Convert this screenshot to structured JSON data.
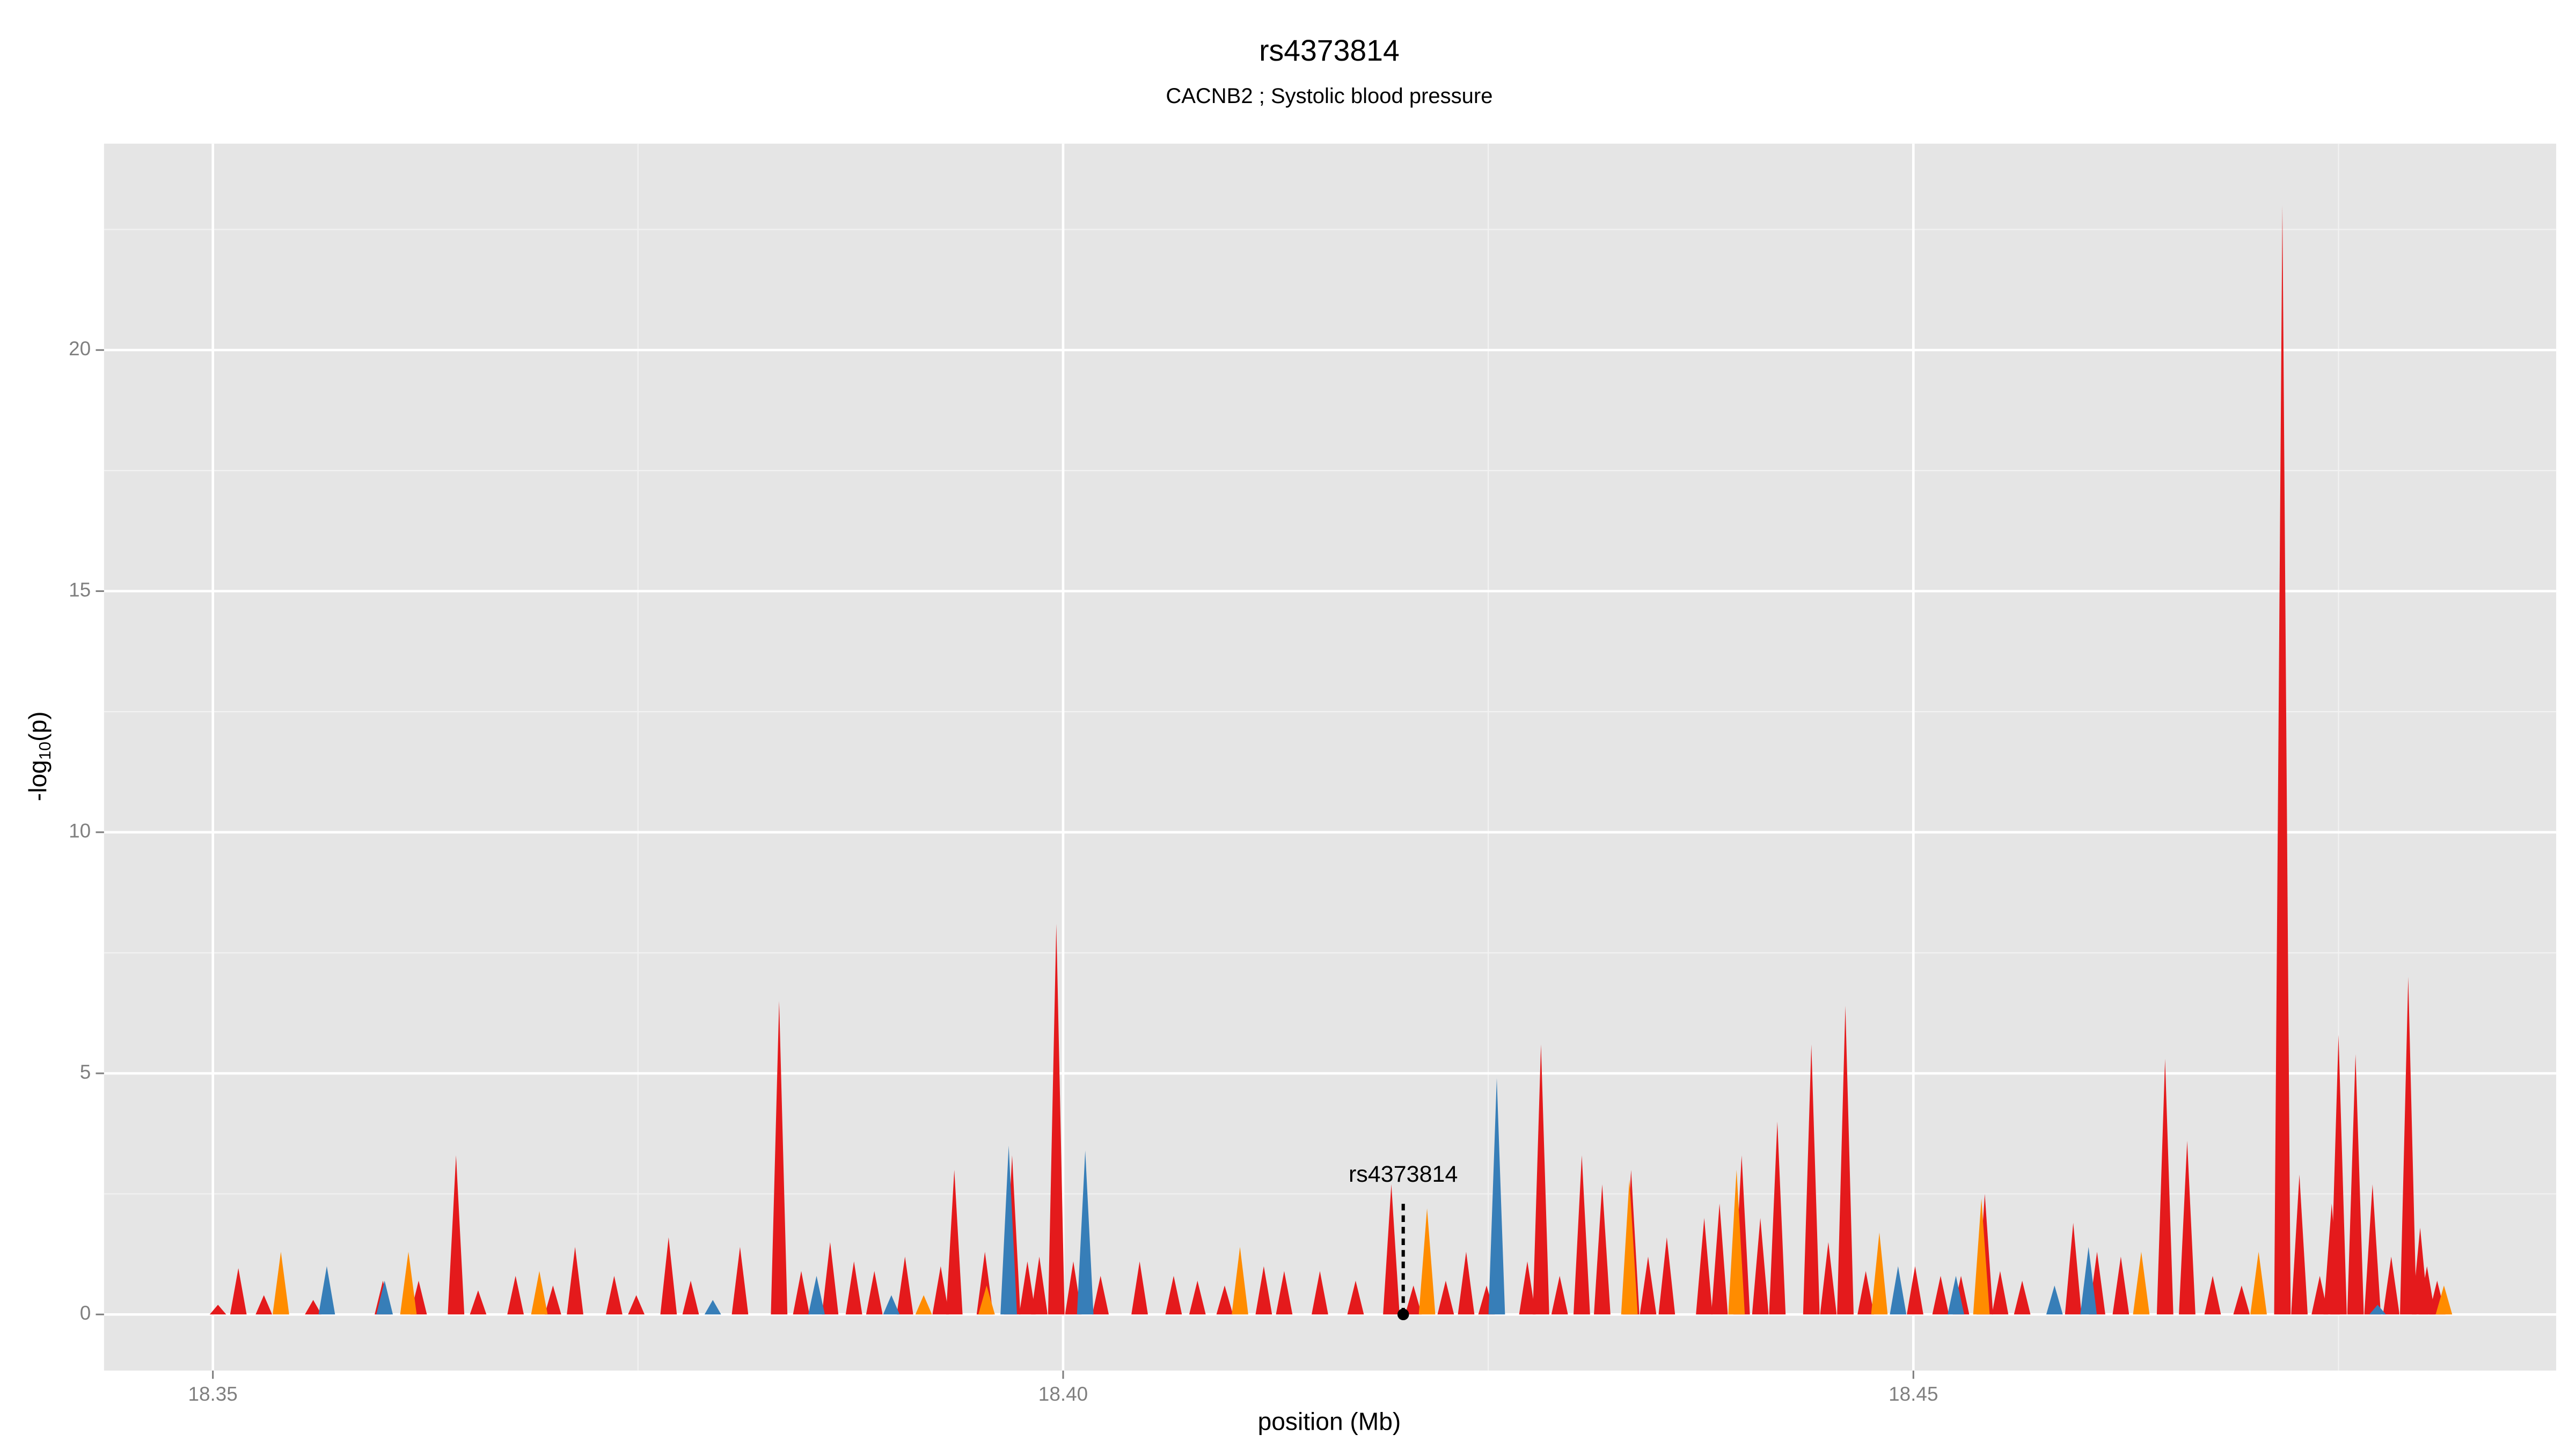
{
  "chart_data": {
    "type": "spike",
    "title": "rs4373814",
    "subtitle": "CACNB2 ; Systolic blood pressure",
    "x_label": "position (Mb)",
    "y_label": {
      "main": "-log",
      "sub": "10",
      "tail": "(p)"
    },
    "xlim": [
      18.3436,
      18.4878
    ],
    "ylim": [
      -1.164,
      24.28
    ],
    "xticks": [
      18.35,
      {
        "value": 18.4,
        "label": "18.40"
      },
      18.45
    ],
    "yticks": [
      0,
      5,
      10,
      15,
      20
    ],
    "minor_xticks": [
      18.375,
      18.425,
      18.475
    ],
    "minor_yticks": [
      2.5,
      7.5,
      12.5,
      17.5,
      22.5
    ],
    "grid": true,
    "series": [
      {
        "color": "#e41a1c",
        "x": [
          18.3503,
          18.3515,
          18.353,
          18.3559,
          18.36,
          18.3621,
          18.3643,
          18.3656,
          18.3678,
          18.37,
          18.3713,
          18.3736,
          18.3749,
          18.3768,
          18.3781,
          18.381,
          18.3833,
          18.3846,
          18.3863,
          18.3877,
          18.3889,
          18.3907,
          18.3928,
          18.3936,
          18.3954,
          18.397,
          18.3979,
          18.3986,
          18.3996,
          18.4006,
          18.4022,
          18.4045,
          18.4065,
          18.4079,
          18.4095,
          18.4118,
          18.413,
          18.4151,
          18.4172,
          18.4193,
          18.4206,
          18.4225,
          18.4237,
          18.4249,
          18.4273,
          18.4281,
          18.4292,
          18.4305,
          18.4317,
          18.4334,
          18.4344,
          18.4355,
          18.4377,
          18.4386,
          18.4399,
          18.441,
          18.442,
          18.444,
          18.445,
          18.446,
          18.4472,
          18.4501,
          18.4516,
          18.4528,
          18.4542,
          18.4551,
          18.4564,
          18.4594,
          18.4608,
          18.4622,
          18.4648,
          18.4661,
          18.4676,
          18.4693,
          18.4717,
          18.4727,
          18.4739,
          18.4746,
          18.475,
          18.476,
          18.477,
          18.4781,
          18.4791,
          18.4798,
          18.4802,
          18.4808
        ],
        "values": [
          0.2,
          0.96,
          0.4,
          0.3,
          0.7,
          0.7,
          3.3,
          0.5,
          0.8,
          0.6,
          1.4,
          0.8,
          0.4,
          1.6,
          0.7,
          1.4,
          6.5,
          0.9,
          1.5,
          1.1,
          0.9,
          1.2,
          1.0,
          3.0,
          1.3,
          3.3,
          1.1,
          1.2,
          8.1,
          1.1,
          0.8,
          1.1,
          0.8,
          0.7,
          0.6,
          1.0,
          0.9,
          0.9,
          0.7,
          2.7,
          0.6,
          0.7,
          1.3,
          0.6,
          1.1,
          5.6,
          0.8,
          3.3,
          2.7,
          3.0,
          1.2,
          1.6,
          2.0,
          2.3,
          3.3,
          2.0,
          4.0,
          5.6,
          1.5,
          6.4,
          0.9,
          1.0,
          0.8,
          0.8,
          2.5,
          0.9,
          0.7,
          1.9,
          1.3,
          1.2,
          5.3,
          3.6,
          0.8,
          0.6,
          23.0,
          2.9,
          0.8,
          2.3,
          5.8,
          5.4,
          2.7,
          1.2,
          7.0,
          1.8,
          1.0,
          0.7
        ]
      },
      {
        "color": "#ff8c00",
        "x": [
          18.354,
          18.3615,
          18.3692,
          18.3918,
          18.3955,
          18.4104,
          18.4214,
          18.4333,
          18.4396,
          18.448,
          18.454,
          18.4634,
          18.4703,
          18.4812
        ],
        "values": [
          1.3,
          1.3,
          0.9,
          0.4,
          0.6,
          1.4,
          2.2,
          2.8,
          3.0,
          1.7,
          2.4,
          1.3,
          1.3,
          0.6
        ]
      },
      {
        "color": "#377eb8",
        "x": [
          18.3567,
          18.3601,
          18.3794,
          18.3855,
          18.3899,
          18.3968,
          18.4013,
          18.4255,
          18.4491,
          18.4525,
          18.4583,
          18.4603,
          18.4773
        ],
        "values": [
          1.0,
          0.7,
          0.3,
          0.8,
          0.4,
          3.5,
          3.4,
          4.9,
          1.0,
          0.8,
          0.6,
          1.4,
          0.2
        ]
      }
    ],
    "annotation": {
      "label": "rs4373814",
      "x": 18.42,
      "y": 0
    }
  }
}
